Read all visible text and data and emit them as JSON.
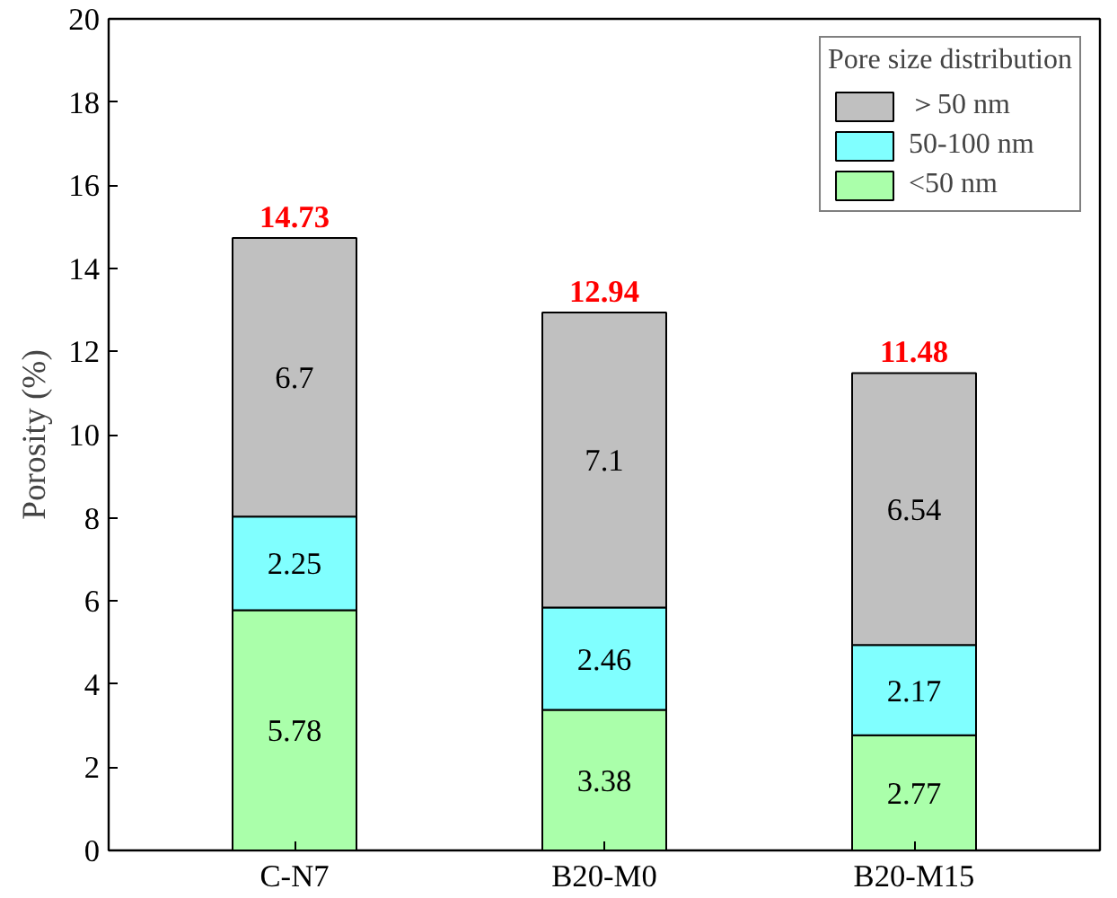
{
  "chart_data": {
    "type": "bar",
    "stacked": true,
    "ylabel": "Porosity (%)",
    "legend_title": "Pore size distribution",
    "categories": [
      "C-N7",
      "B20-M0",
      "B20-M15"
    ],
    "series": [
      {
        "name": "<50 nm",
        "color": "#aaffaa",
        "values": [
          5.78,
          3.38,
          2.77
        ]
      },
      {
        "name": "50-100 nm",
        "color": "#80ffff",
        "values": [
          2.25,
          2.46,
          2.17
        ]
      },
      {
        "name": "＞50 nm",
        "color": "#c0c0c0",
        "values": [
          6.7,
          7.1,
          6.54
        ]
      }
    ],
    "ylim": [
      0,
      20
    ],
    "yticks": [
      0,
      2,
      4,
      6,
      8,
      10,
      12,
      14,
      16,
      18,
      20
    ],
    "data_labels": true,
    "totals": [
      "14.73",
      "12.94",
      "11.48"
    ],
    "legend": "top right",
    "grid": false
  }
}
